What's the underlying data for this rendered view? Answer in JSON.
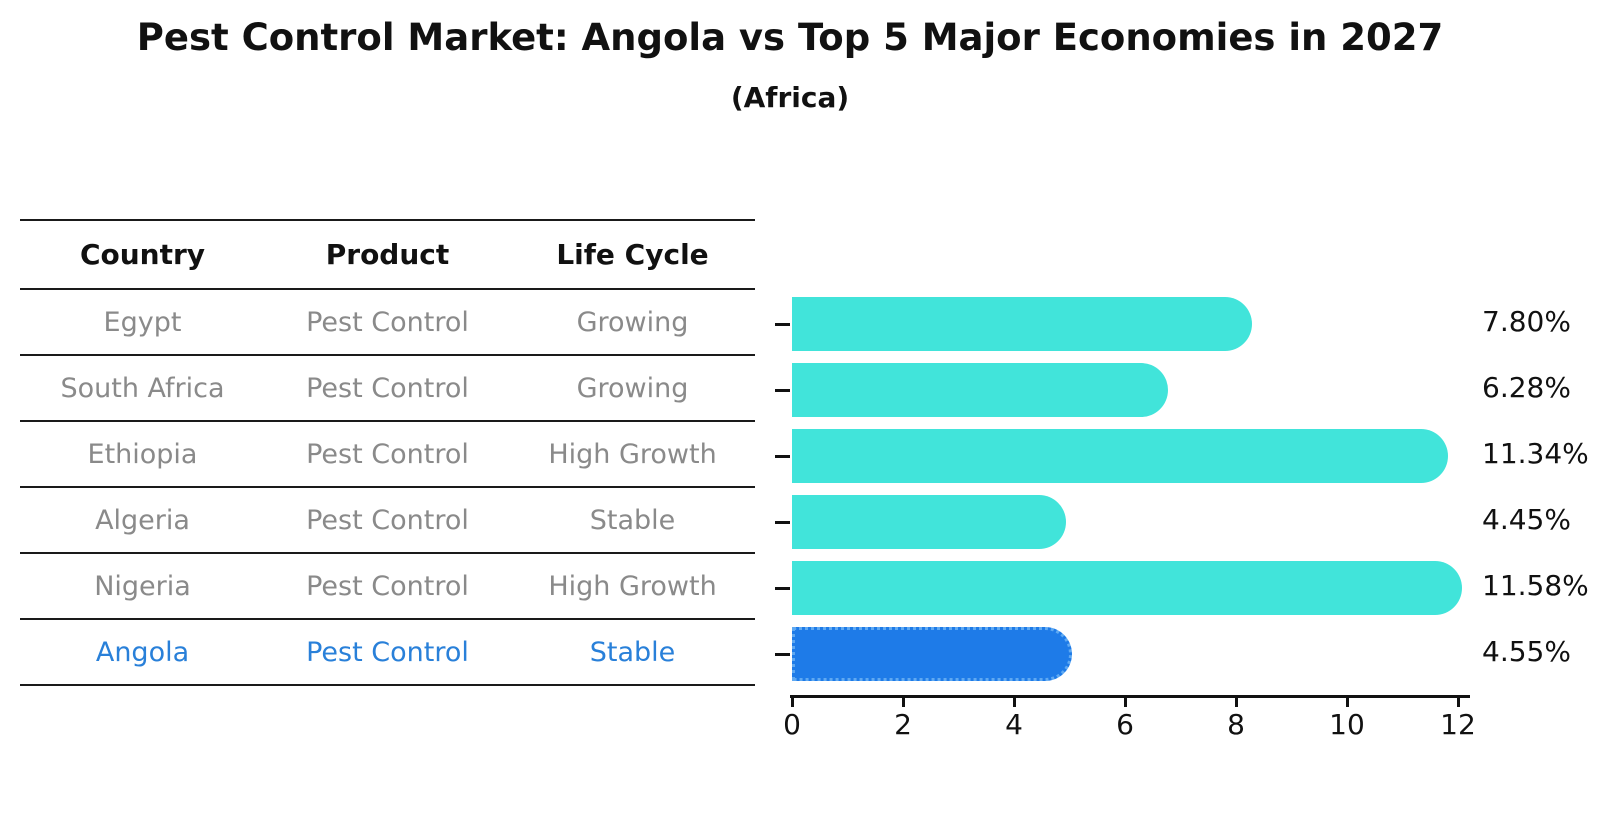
{
  "title": "Pest Control Market: Angola vs Top 5 Major Economies in 2027",
  "subtitle": "(Africa)",
  "table": {
    "headers": [
      "Country",
      "Product",
      "Life Cycle"
    ],
    "rows": [
      {
        "country": "Egypt",
        "product": "Pest Control",
        "life_cycle": "Growing",
        "highlight": false
      },
      {
        "country": "South Africa",
        "product": "Pest Control",
        "life_cycle": "Growing",
        "highlight": false
      },
      {
        "country": "Ethiopia",
        "product": "Pest Control",
        "life_cycle": "High Growth",
        "highlight": false
      },
      {
        "country": "Algeria",
        "product": "Pest Control",
        "life_cycle": "Stable",
        "highlight": false
      },
      {
        "country": "Nigeria",
        "product": "Pest Control",
        "life_cycle": "High Growth",
        "highlight": false
      },
      {
        "country": "Angola",
        "product": "Pest Control",
        "life_cycle": "Stable",
        "highlight": true
      }
    ]
  },
  "chart_data": {
    "type": "bar",
    "orientation": "horizontal",
    "title": "Pest Control Market: Angola vs Top 5 Major Economies in 2027",
    "subtitle": "(Africa)",
    "categories": [
      "Egypt",
      "South Africa",
      "Ethiopia",
      "Algeria",
      "Nigeria",
      "Angola"
    ],
    "values": [
      7.8,
      6.28,
      11.34,
      4.45,
      11.58,
      4.55
    ],
    "value_labels": [
      "7.80%",
      "6.28%",
      "11.34%",
      "4.45%",
      "11.58%",
      "4.55%"
    ],
    "unit": "percent",
    "xlim": [
      0,
      12
    ],
    "xticks": [
      0,
      2,
      4,
      6,
      8,
      10,
      12
    ],
    "grid": false,
    "legend": false,
    "highlight_index": 5,
    "colors": {
      "bar": "#41e4da",
      "highlight_bar": "#1e7be8",
      "highlight_border": "#5fa9f2",
      "highlight_text": "#2980d9",
      "row_text": "#8a8a8a",
      "ink": "#111111"
    }
  }
}
